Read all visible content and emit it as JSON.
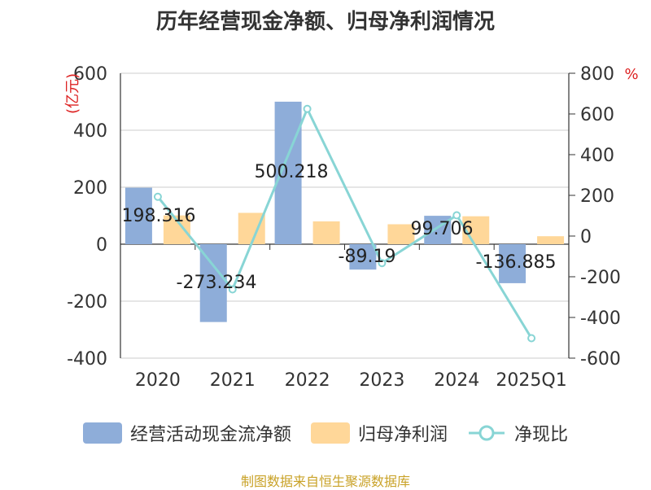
{
  "title": "历年经营现金净额、归母净利润情况",
  "source": "制图数据来自恒生聚源数据库",
  "colors": {
    "cash_flow": "#8eadd9",
    "net_profit": "#ffd799",
    "ratio": "#88d5d5",
    "axis_unit": "#dd2222",
    "source": "#c9a227",
    "grid": "#cccccc",
    "text": "#333333"
  },
  "chart_data": {
    "type": "bar",
    "categories": [
      "2020",
      "2021",
      "2022",
      "2023",
      "2024",
      "2025Q1"
    ],
    "left_axis": {
      "label": "(亿元)",
      "ylim": [
        -400,
        600
      ],
      "ticks": [
        600,
        400,
        200,
        0,
        -200,
        -400
      ]
    },
    "right_axis": {
      "label": "%",
      "ylim": [
        -600,
        800
      ],
      "ticks": [
        800,
        600,
        400,
        200,
        0,
        -200,
        -400,
        -600
      ]
    },
    "series": [
      {
        "name": "经营活动现金流净额",
        "type": "bar",
        "axis": "left",
        "values": [
          198.316,
          -273.234,
          500.218,
          -89.19,
          99.706,
          -136.885
        ],
        "labels": [
          "198.316",
          "-273.234",
          "500.218",
          "-89.19",
          "99.706",
          "-136.885"
        ]
      },
      {
        "name": "归母净利润",
        "type": "bar",
        "axis": "left",
        "values": [
          101,
          110,
          80,
          70,
          98,
          28
        ]
      },
      {
        "name": "净现比",
        "type": "line",
        "axis": "right",
        "values": [
          193,
          -262,
          625,
          -133,
          102,
          -502
        ]
      }
    ],
    "grid": true,
    "legend_position": "bottom"
  }
}
